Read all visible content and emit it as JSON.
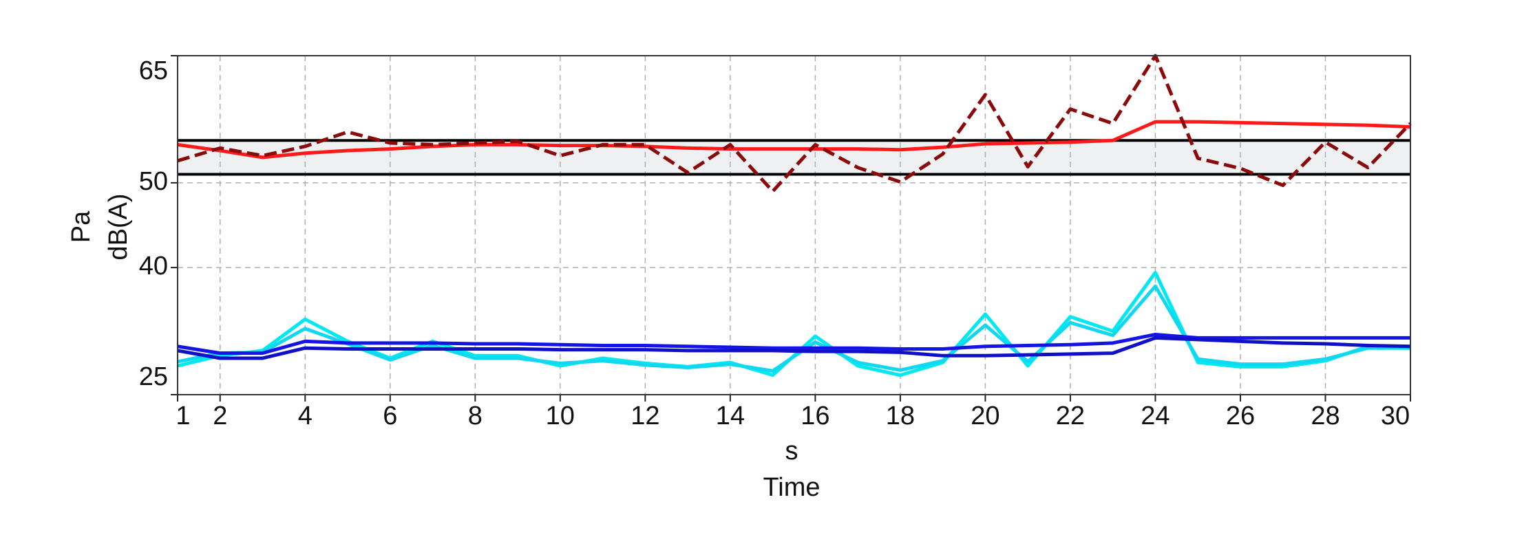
{
  "chart_data": {
    "type": "line",
    "x_label": "Time",
    "x_units": "s",
    "y_label": "dB(A)",
    "y_units": "Pa",
    "x": [
      1,
      2,
      3,
      4,
      5,
      6,
      7,
      8,
      9,
      10,
      11,
      12,
      13,
      14,
      15,
      16,
      17,
      18,
      19,
      20,
      21,
      22,
      23,
      24,
      25,
      26,
      27,
      28,
      29,
      30
    ],
    "series": [
      {
        "color": "#00e8f0",
        "style": "solid",
        "values": [
          28.4,
          29.6,
          30.2,
          33.9,
          31.3,
          29.3,
          31.3,
          29.6,
          29.6,
          28.4,
          29.3,
          28.7,
          28.3,
          28.8,
          27.3,
          31.9,
          28.4,
          27.3,
          28.8,
          34.5,
          28.4,
          34.2,
          32.5,
          39.4,
          28.8,
          28.3,
          28.3,
          29.0,
          30.7,
          30.7
        ]
      },
      {
        "color": "#10d8f0",
        "style": "solid",
        "values": [
          28.9,
          29.9,
          30.0,
          32.8,
          31.0,
          29.1,
          30.8,
          29.3,
          29.3,
          28.7,
          29.0,
          28.5,
          28.2,
          28.6,
          27.8,
          31.2,
          28.8,
          27.9,
          29.0,
          33.2,
          28.9,
          33.5,
          32.0,
          37.8,
          29.2,
          28.6,
          28.6,
          29.2,
          30.5,
          30.5
        ]
      },
      {
        "color": "#1414e6",
        "style": "solid",
        "values": [
          30.7,
          29.9,
          29.9,
          31.3,
          31.1,
          31.1,
          31.1,
          31.0,
          31.0,
          30.9,
          30.8,
          30.8,
          30.7,
          30.6,
          30.5,
          30.5,
          30.5,
          30.4,
          30.4,
          30.7,
          30.8,
          30.9,
          31.1,
          32.1,
          31.7,
          31.7,
          31.7,
          31.7,
          31.7,
          31.7
        ]
      },
      {
        "color": "#1010c8",
        "style": "solid",
        "values": [
          30.2,
          29.3,
          29.3,
          30.5,
          30.4,
          30.4,
          30.4,
          30.4,
          30.4,
          30.3,
          30.3,
          30.3,
          30.2,
          30.2,
          30.2,
          30.1,
          30.1,
          30.0,
          29.6,
          29.6,
          29.7,
          29.8,
          29.9,
          31.7,
          31.5,
          31.3,
          31.1,
          31.0,
          30.8,
          30.7
        ]
      },
      {
        "color": "#ff1a1a",
        "style": "solid",
        "values": [
          54.5,
          53.8,
          53.0,
          53.5,
          53.8,
          54.0,
          54.3,
          54.5,
          54.5,
          54.4,
          54.4,
          54.3,
          54.1,
          54.0,
          54.0,
          54.0,
          54.0,
          53.9,
          54.2,
          54.6,
          54.7,
          54.8,
          55.0,
          57.2,
          57.2,
          57.1,
          57.0,
          56.9,
          56.8,
          56.6
        ]
      },
      {
        "color": "#8b0a0a",
        "style": "dashed",
        "values": [
          52.6,
          54.1,
          53.2,
          54.3,
          56.0,
          54.7,
          54.5,
          54.7,
          54.9,
          53.2,
          54.5,
          54.5,
          51.2,
          54.5,
          49.0,
          54.5,
          51.8,
          50.1,
          53.4,
          60.4,
          51.9,
          58.7,
          57.0,
          65,
          52.9,
          51.7,
          49.7,
          54.8,
          51.8,
          57.0
        ]
      }
    ],
    "reference_lines": [
      55,
      51
    ],
    "reference_color": "#000000",
    "band_color": "#eef0f2",
    "xlim": [
      1,
      30
    ],
    "xticks": [
      1,
      2,
      4,
      6,
      8,
      10,
      12,
      14,
      16,
      18,
      20,
      22,
      24,
      26,
      28,
      30
    ],
    "ylim": [
      25,
      65
    ],
    "yticks": [
      25,
      40,
      50,
      65
    ],
    "grid": true
  }
}
